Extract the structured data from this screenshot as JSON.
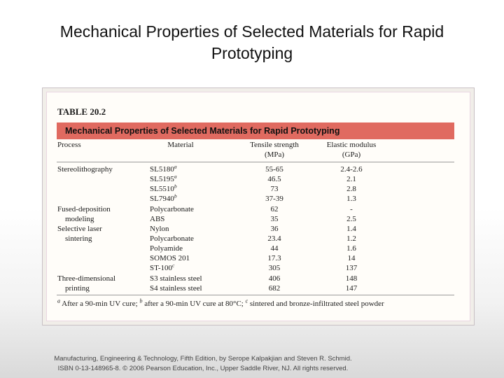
{
  "slide": {
    "title": "Mechanical Properties of Selected Materials for Rapid Prototyping"
  },
  "table": {
    "number": "TABLE 20.2",
    "caption": "Mechanical Properties of Selected Materials for Rapid Prototyping",
    "headers": {
      "process": "Process",
      "material": "Material",
      "tensile_line1": "Tensile strength",
      "tensile_line2": "(MPa)",
      "elastic_line1": "Elastic modulus",
      "elastic_line2": "(GPa)"
    },
    "rows": [
      {
        "process": "Stereolithography",
        "material": "SL5180",
        "sup": "a",
        "tensile": "55-65",
        "elastic": "2.4-2.6"
      },
      {
        "process": "",
        "material": "SL5195",
        "sup": "a",
        "tensile": "46.5",
        "elastic": "2.1"
      },
      {
        "process": "",
        "material": "SL5510",
        "sup": "b",
        "tensile": "73",
        "elastic": "2.8"
      },
      {
        "process": "",
        "material": "SL7940",
        "sup": "b",
        "tensile": "37-39",
        "elastic": "1.3"
      },
      {
        "process": "Fused-deposition",
        "material": "Polycarbonate",
        "sup": "",
        "tensile": "62",
        "elastic": "-"
      },
      {
        "process": "    modeling",
        "material": "ABS",
        "sup": "",
        "tensile": "35",
        "elastic": "2.5"
      },
      {
        "process": "Selective laser",
        "material": "Nylon",
        "sup": "",
        "tensile": "36",
        "elastic": "1.4"
      },
      {
        "process": "    sintering",
        "material": "Polycarbonate",
        "sup": "",
        "tensile": "23.4",
        "elastic": "1.2"
      },
      {
        "process": "",
        "material": "Polyamide",
        "sup": "",
        "tensile": "44",
        "elastic": "1.6"
      },
      {
        "process": "",
        "material": "SOMOS 201",
        "sup": "",
        "tensile": "17.3",
        "elastic": "14"
      },
      {
        "process": "",
        "material": "ST-100",
        "sup": "c",
        "tensile": "305",
        "elastic": "137"
      },
      {
        "process": "Three-dimensional",
        "material": "S3 stainless steel",
        "sup": "",
        "tensile": "406",
        "elastic": "148"
      },
      {
        "process": "    printing",
        "material": "S4 stainless steel",
        "sup": "",
        "tensile": "682",
        "elastic": "147"
      }
    ],
    "footnote": {
      "a_mark": "a",
      "a_text": " After a 90-min UV cure; ",
      "b_mark": "b",
      "b_text": " after a 90-min UV cure at 80°C; ",
      "c_mark": "c",
      "c_text": " sintered and bronze-infiltrated steel powder"
    }
  },
  "credit": {
    "line1": "Manufacturing, Engineering & Technology, Fifth Edition, by Serope Kalpakjian and Steven R. Schmid.",
    "line2": "ISBN 0-13-148965-8. © 2006 Pearson Education, Inc., Upper Saddle River, NJ.  All rights reserved."
  }
}
